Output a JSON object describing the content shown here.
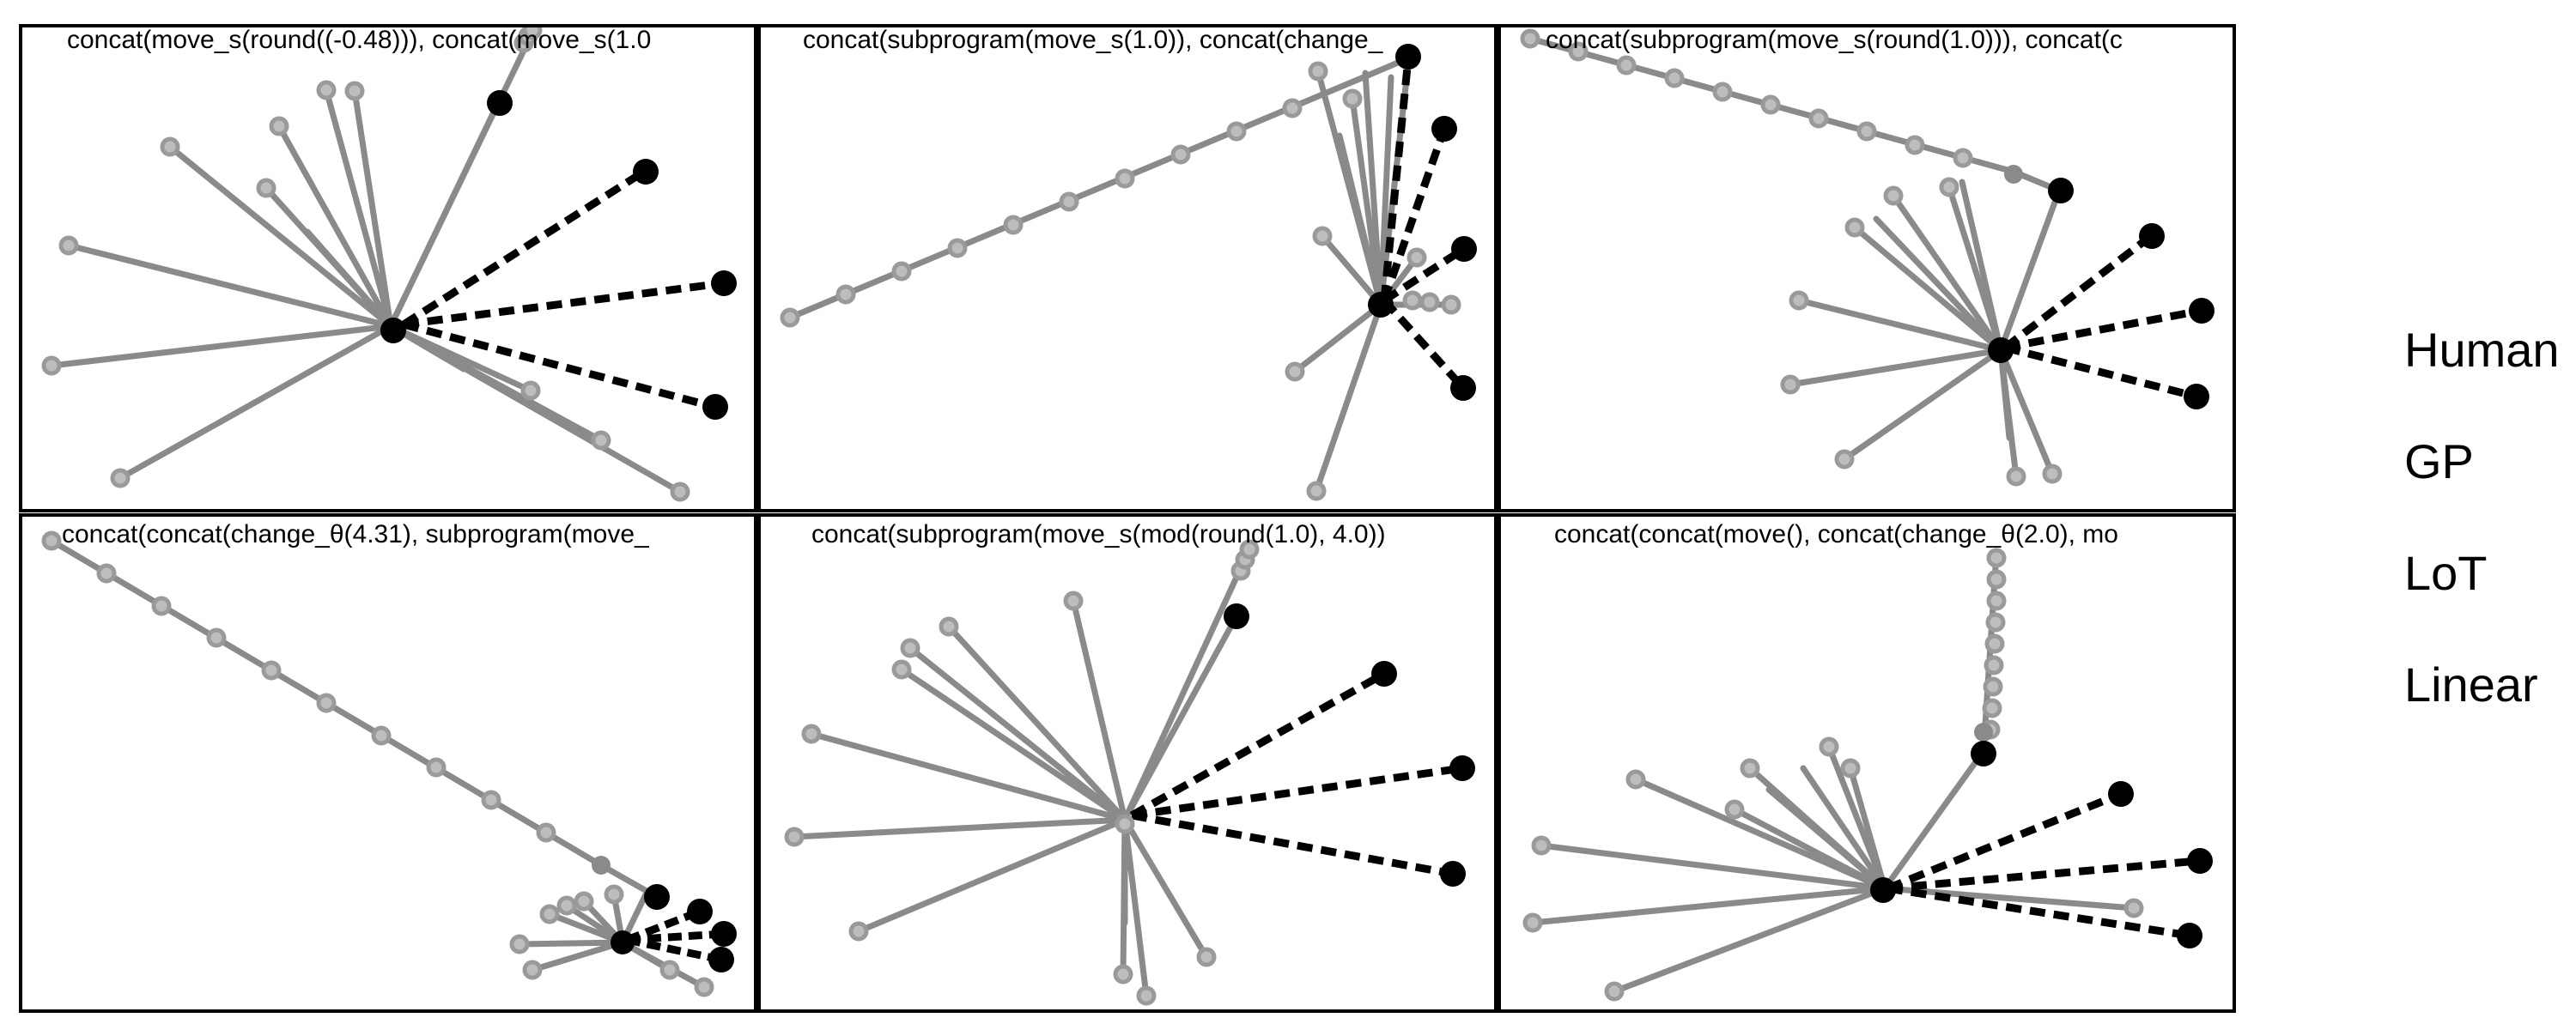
{
  "colors": {
    "background": "#ffffff",
    "frame": "#000000",
    "human_line": "#8a8a8a",
    "human_point": "#9a9a9a",
    "target_point": "#000000"
  },
  "legend": [
    "Human",
    "GP",
    "LoT",
    "Linear"
  ],
  "panels": [
    {
      "title": "concat(move_s(round((-0.48))), concat(move_s(1.0",
      "kind": "burst-dashed"
    },
    {
      "title": "concat(subprogram(move_s(1.0)), concat(change_",
      "kind": "burst-right"
    },
    {
      "title": "concat(subprogram(move_s(round(1.0))), concat(c",
      "kind": "burst-dashed"
    },
    {
      "title": "concat(concat(change_θ(4.31), subprogram(move_",
      "kind": "burst-corner"
    },
    {
      "title": "concat(subprogram(move_s(mod(round(1.0), 4.0))",
      "kind": "burst-dashed"
    },
    {
      "title": "concat(concat(move(), concat(change_θ(2.0), mo",
      "kind": "burst-dashed"
    }
  ]
}
